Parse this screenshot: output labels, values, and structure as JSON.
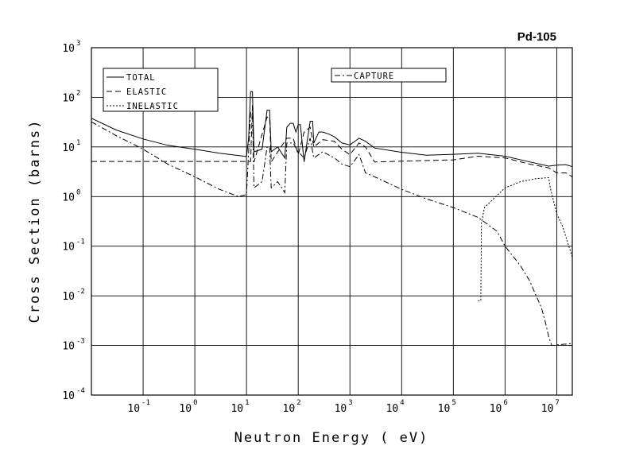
{
  "chart_data": {
    "type": "line",
    "title": "Pd-105",
    "xlabel": "Neutron Energy ( eV)",
    "ylabel": "Cross Section (barns)",
    "x_scale": "log",
    "y_scale": "log",
    "xlim": [
      0.01,
      20000000
    ],
    "ylim": [
      0.0001,
      1000
    ],
    "grid": true,
    "x_ticks": [
      {
        "base": "10",
        "exp": "-1",
        "value": 0.1
      },
      {
        "base": "10",
        "exp": "0",
        "value": 1
      },
      {
        "base": "10",
        "exp": "1",
        "value": 10
      },
      {
        "base": "10",
        "exp": "2",
        "value": 100
      },
      {
        "base": "10",
        "exp": "3",
        "value": 1000
      },
      {
        "base": "10",
        "exp": "4",
        "value": 10000
      },
      {
        "base": "10",
        "exp": "5",
        "value": 100000
      },
      {
        "base": "10",
        "exp": "6",
        "value": 1000000
      },
      {
        "base": "10",
        "exp": "7",
        "value": 10000000
      }
    ],
    "y_ticks": [
      {
        "base": "10",
        "exp": "3",
        "value": 1000
      },
      {
        "base": "10",
        "exp": "2",
        "value": 100
      },
      {
        "base": "10",
        "exp": "1",
        "value": 10
      },
      {
        "base": "10",
        "exp": "0",
        "value": 1
      },
      {
        "base": "10",
        "exp": "-1",
        "value": 0.1
      },
      {
        "base": "10",
        "exp": "-2",
        "value": 0.01
      },
      {
        "base": "10",
        "exp": "-3",
        "value": 0.001
      },
      {
        "base": "10",
        "exp": "-4",
        "value": 0.0001
      }
    ],
    "legend_left": [
      "TOTAL",
      "ELASTIC",
      "INELASTIC"
    ],
    "legend_right": [
      "CAPTURE"
    ],
    "series": [
      {
        "name": "TOTAL",
        "dash": "solid",
        "points": [
          [
            0.01,
            38
          ],
          [
            0.03,
            22
          ],
          [
            0.1,
            14.5
          ],
          [
            0.3,
            10.8
          ],
          [
            1,
            9
          ],
          [
            3,
            7.5
          ],
          [
            8,
            6.6
          ],
          [
            10,
            6.4
          ],
          [
            11,
            15
          ],
          [
            12,
            130
          ],
          [
            13,
            130
          ],
          [
            14,
            8
          ],
          [
            20,
            9
          ],
          [
            25,
            55
          ],
          [
            28,
            55
          ],
          [
            30,
            8
          ],
          [
            40,
            10
          ],
          [
            55,
            6
          ],
          [
            60,
            25
          ],
          [
            70,
            30
          ],
          [
            80,
            30
          ],
          [
            90,
            20
          ],
          [
            100,
            28
          ],
          [
            110,
            28
          ],
          [
            130,
            5
          ],
          [
            170,
            33
          ],
          [
            190,
            33
          ],
          [
            200,
            12
          ],
          [
            250,
            20
          ],
          [
            300,
            20
          ],
          [
            400,
            18
          ],
          [
            500,
            16
          ],
          [
            700,
            12
          ],
          [
            1000,
            11
          ],
          [
            1500,
            15
          ],
          [
            2000,
            13
          ],
          [
            3000,
            9.5
          ],
          [
            10000,
            7.8
          ],
          [
            30000,
            6.8
          ],
          [
            100000,
            7.1
          ],
          [
            300000,
            7.5
          ],
          [
            1000000,
            6.5
          ],
          [
            3000000,
            5
          ],
          [
            7000000,
            4.1
          ],
          [
            10000000,
            4.3
          ],
          [
            15000000,
            4.4
          ],
          [
            20000000,
            4
          ]
        ]
      },
      {
        "name": "ELASTIC",
        "dash": "dashed",
        "points": [
          [
            0.01,
            5.1
          ],
          [
            10,
            5.1
          ],
          [
            12,
            5.1
          ],
          [
            13,
            70
          ],
          [
            14,
            5
          ],
          [
            25,
            40
          ],
          [
            28,
            40
          ],
          [
            30,
            5
          ],
          [
            60,
            15
          ],
          [
            80,
            15
          ],
          [
            100,
            7
          ],
          [
            130,
            20
          ],
          [
            170,
            25
          ],
          [
            200,
            10
          ],
          [
            300,
            14
          ],
          [
            500,
            13
          ],
          [
            700,
            9
          ],
          [
            1000,
            7
          ],
          [
            1500,
            12
          ],
          [
            2000,
            10
          ],
          [
            3000,
            5
          ],
          [
            100000,
            5.5
          ],
          [
            300000,
            6.5
          ],
          [
            1000000,
            6
          ],
          [
            3000000,
            4.5
          ],
          [
            7000000,
            3.8
          ],
          [
            10000000,
            3
          ],
          [
            15000000,
            3
          ],
          [
            20000000,
            2.5
          ]
        ]
      },
      {
        "name": "INELASTIC",
        "dash": "dotted",
        "points": [
          [
            300000,
            0.008
          ],
          [
            340000,
            0.008
          ],
          [
            350000,
            0.3
          ],
          [
            400000,
            0.6
          ],
          [
            600000,
            0.9
          ],
          [
            1000000,
            1.5
          ],
          [
            2000000,
            2
          ],
          [
            4000000,
            2.3
          ],
          [
            7000000,
            2.4
          ],
          [
            7500000,
            1.5
          ],
          [
            10000000,
            0.45
          ],
          [
            13000000,
            0.25
          ],
          [
            20000000,
            0.06
          ]
        ]
      },
      {
        "name": "CAPTURE",
        "dash": "dashdot",
        "points": [
          [
            0.01,
            32
          ],
          [
            0.03,
            17
          ],
          [
            0.1,
            9
          ],
          [
            0.3,
            4.5
          ],
          [
            1,
            2.5
          ],
          [
            3,
            1.4
          ],
          [
            7,
            1
          ],
          [
            10,
            1.1
          ],
          [
            12,
            50
          ],
          [
            13,
            50
          ],
          [
            14,
            1.5
          ],
          [
            20,
            2
          ],
          [
            25,
            10
          ],
          [
            28,
            10
          ],
          [
            30,
            1.5
          ],
          [
            40,
            2
          ],
          [
            55,
            1.2
          ],
          [
            60,
            12
          ],
          [
            80,
            12
          ],
          [
            100,
            8
          ],
          [
            130,
            6
          ],
          [
            170,
            15
          ],
          [
            200,
            6
          ],
          [
            300,
            8
          ],
          [
            500,
            6
          ],
          [
            700,
            4.5
          ],
          [
            1000,
            4
          ],
          [
            1500,
            7
          ],
          [
            2000,
            3
          ],
          [
            3000,
            2.5
          ],
          [
            10000,
            1.4
          ],
          [
            30000,
            0.9
          ],
          [
            100000,
            0.6
          ],
          [
            300000,
            0.38
          ],
          [
            700000,
            0.2
          ],
          [
            1000000,
            0.1
          ],
          [
            2000000,
            0.04
          ],
          [
            3000000,
            0.02
          ],
          [
            4000000,
            0.01
          ],
          [
            5000000,
            0.006
          ],
          [
            6000000,
            0.003
          ],
          [
            7000000,
            0.0015
          ],
          [
            8000000,
            0.001
          ],
          [
            20000000,
            0.0011
          ]
        ]
      }
    ]
  }
}
